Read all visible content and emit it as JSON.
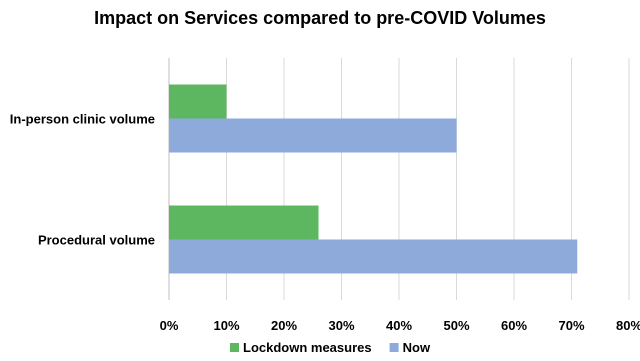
{
  "chart_data": {
    "type": "bar",
    "orientation": "horizontal",
    "title": "Impact on Services compared to pre-COVID Volumes",
    "categories": [
      "In-person clinic volume",
      "Procedural volume"
    ],
    "series": [
      {
        "name": "Lockdown measures",
        "color": "#5db761",
        "values": [
          10,
          26
        ]
      },
      {
        "name": "Now",
        "color": "#8eaadb",
        "values": [
          50,
          71
        ]
      }
    ],
    "xlim": [
      0,
      80
    ],
    "xticks": [
      "0%",
      "10%",
      "20%",
      "30%",
      "40%",
      "50%",
      "60%",
      "70%",
      "80%"
    ],
    "grid": true,
    "legend": "bottom"
  }
}
